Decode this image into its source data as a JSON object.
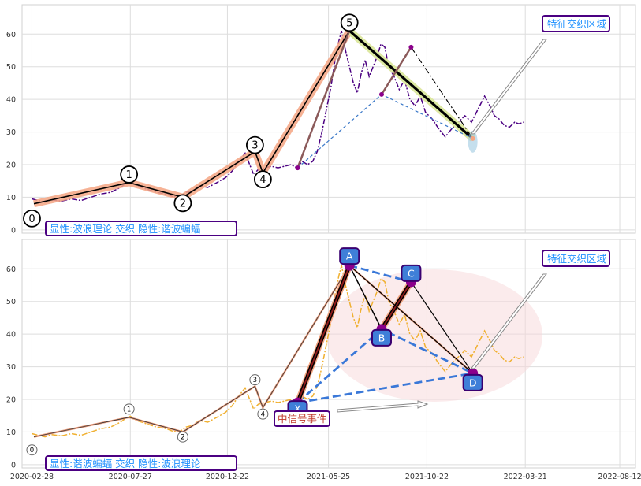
{
  "chart_data": {
    "type": "line",
    "x_ticks": [
      "2020-02-28",
      "2020-07-27",
      "2020-12-22",
      "2021-05-25",
      "2021-10-22",
      "2022-03-21",
      "2022-08-12"
    ],
    "x_tick_days": [
      0,
      150,
      298,
      452,
      602,
      752,
      896
    ],
    "y_ticks": [
      0,
      10,
      20,
      30,
      40,
      50,
      60
    ],
    "ylim": [
      -1,
      69
    ],
    "grid": true,
    "price": [
      [
        0,
        9.5
      ],
      [
        10,
        9.0
      ],
      [
        20,
        8.5
      ],
      [
        30,
        9.2
      ],
      [
        45,
        8.8
      ],
      [
        60,
        9.5
      ],
      [
        75,
        9.0
      ],
      [
        90,
        10.0
      ],
      [
        105,
        11.0
      ],
      [
        120,
        11.5
      ],
      [
        135,
        13.0
      ],
      [
        145,
        14.5
      ],
      [
        150,
        14.8
      ],
      [
        160,
        13.5
      ],
      [
        175,
        12.5
      ],
      [
        190,
        11.5
      ],
      [
        205,
        11.0
      ],
      [
        215,
        10.2
      ],
      [
        225,
        10.0
      ],
      [
        235,
        11.5
      ],
      [
        245,
        12.0
      ],
      [
        255,
        13.5
      ],
      [
        268,
        13.0
      ],
      [
        282,
        14.5
      ],
      [
        295,
        16.0
      ],
      [
        305,
        18.0
      ],
      [
        315,
        21.0
      ],
      [
        325,
        23.5
      ],
      [
        332,
        20.0
      ],
      [
        338,
        17.0
      ],
      [
        345,
        18.5
      ],
      [
        355,
        19.0
      ],
      [
        365,
        19.5
      ],
      [
        375,
        19.0
      ],
      [
        385,
        19.5
      ],
      [
        395,
        20.0
      ],
      [
        404,
        19.0
      ],
      [
        412,
        21.0
      ],
      [
        420,
        20.0
      ],
      [
        428,
        21.0
      ],
      [
        435,
        24.0
      ],
      [
        442,
        30.0
      ],
      [
        450,
        38.0
      ],
      [
        456,
        44.0
      ],
      [
        462,
        52.0
      ],
      [
        468,
        58.0
      ],
      [
        472,
        61.0
      ],
      [
        478,
        55.0
      ],
      [
        484,
        50.0
      ],
      [
        490,
        45.0
      ],
      [
        496,
        42.0
      ],
      [
        502,
        48.0
      ],
      [
        508,
        52.0
      ],
      [
        514,
        47.0
      ],
      [
        520,
        50.0
      ],
      [
        526,
        53.0
      ],
      [
        532,
        57.0
      ],
      [
        538,
        56.0
      ],
      [
        544,
        50.0
      ],
      [
        552,
        47.0
      ],
      [
        560,
        43.0
      ],
      [
        568,
        46.0
      ],
      [
        576,
        40.0
      ],
      [
        584,
        38.0
      ],
      [
        592,
        41.0
      ],
      [
        600,
        36.0
      ],
      [
        610,
        34.0
      ],
      [
        620,
        31.0
      ],
      [
        630,
        28.5
      ],
      [
        640,
        31.0
      ],
      [
        650,
        33.0
      ],
      [
        660,
        35.0
      ],
      [
        670,
        33.0
      ],
      [
        680,
        37.0
      ],
      [
        690,
        41.0
      ],
      [
        698,
        38.0
      ],
      [
        705,
        35.0
      ],
      [
        712,
        34.0
      ],
      [
        720,
        32.0
      ],
      [
        728,
        31.5
      ],
      [
        736,
        33.0
      ],
      [
        742,
        32.5
      ],
      [
        750,
        33.0
      ]
    ],
    "top_panel": {
      "wave_points": [
        [
          3,
          8.0
        ],
        [
          148,
          14.5
        ],
        [
          230,
          10.0
        ],
        [
          340,
          24.0
        ],
        [
          352,
          17.5
        ],
        [
          484,
          61.0
        ],
        [
          672,
          28.0
        ]
      ],
      "wave_labels": [
        {
          "label": "0",
          "x": 0,
          "y": 3.5
        },
        {
          "label": "1",
          "x": 148,
          "y": 17.0
        },
        {
          "label": "2",
          "x": 230,
          "y": 8.2
        },
        {
          "label": "3",
          "x": 340,
          "y": 26.0
        },
        {
          "label": "4",
          "x": 352,
          "y": 15.5
        },
        {
          "label": "5",
          "x": 484,
          "y": 63.5
        }
      ],
      "secondary_points": [
        [
          405,
          19.0
        ],
        [
          484,
          61.0
        ],
        [
          533,
          41.5
        ],
        [
          578,
          56.0
        ],
        [
          672,
          28.0
        ]
      ],
      "legend": "显性:波浪理论 交织 隐性:谐波蝙蝠",
      "annotation": "特征交织区域"
    },
    "bottom_panel": {
      "wave_points": [
        [
          3,
          8.5
        ],
        [
          148,
          14.5
        ],
        [
          230,
          10.0
        ],
        [
          340,
          24.0
        ],
        [
          352,
          17.5
        ],
        [
          484,
          61.0
        ],
        [
          672,
          28.0
        ]
      ],
      "wave_labels": [
        {
          "label": "0",
          "x": 0,
          "y": 4.5
        },
        {
          "label": "1",
          "x": 148,
          "y": 17.0
        },
        {
          "label": "2",
          "x": 230,
          "y": 8.5
        },
        {
          "label": "3",
          "x": 340,
          "y": 26.0
        },
        {
          "label": "4",
          "x": 352,
          "y": 15.5
        }
      ],
      "xabcd": [
        {
          "label": "X",
          "x": 405,
          "y": 19.0
        },
        {
          "label": "A",
          "x": 484,
          "y": 61.0
        },
        {
          "label": "B",
          "x": 533,
          "y": 41.5
        },
        {
          "label": "C",
          "x": 578,
          "y": 56.0
        },
        {
          "label": "D",
          "x": 672,
          "y": 28.0
        }
      ],
      "legend": "显性:谐波蝙蝠 交织 隐性:波浪理论",
      "annotation": "特征交织区域",
      "signal_label": "中信号事件"
    }
  }
}
